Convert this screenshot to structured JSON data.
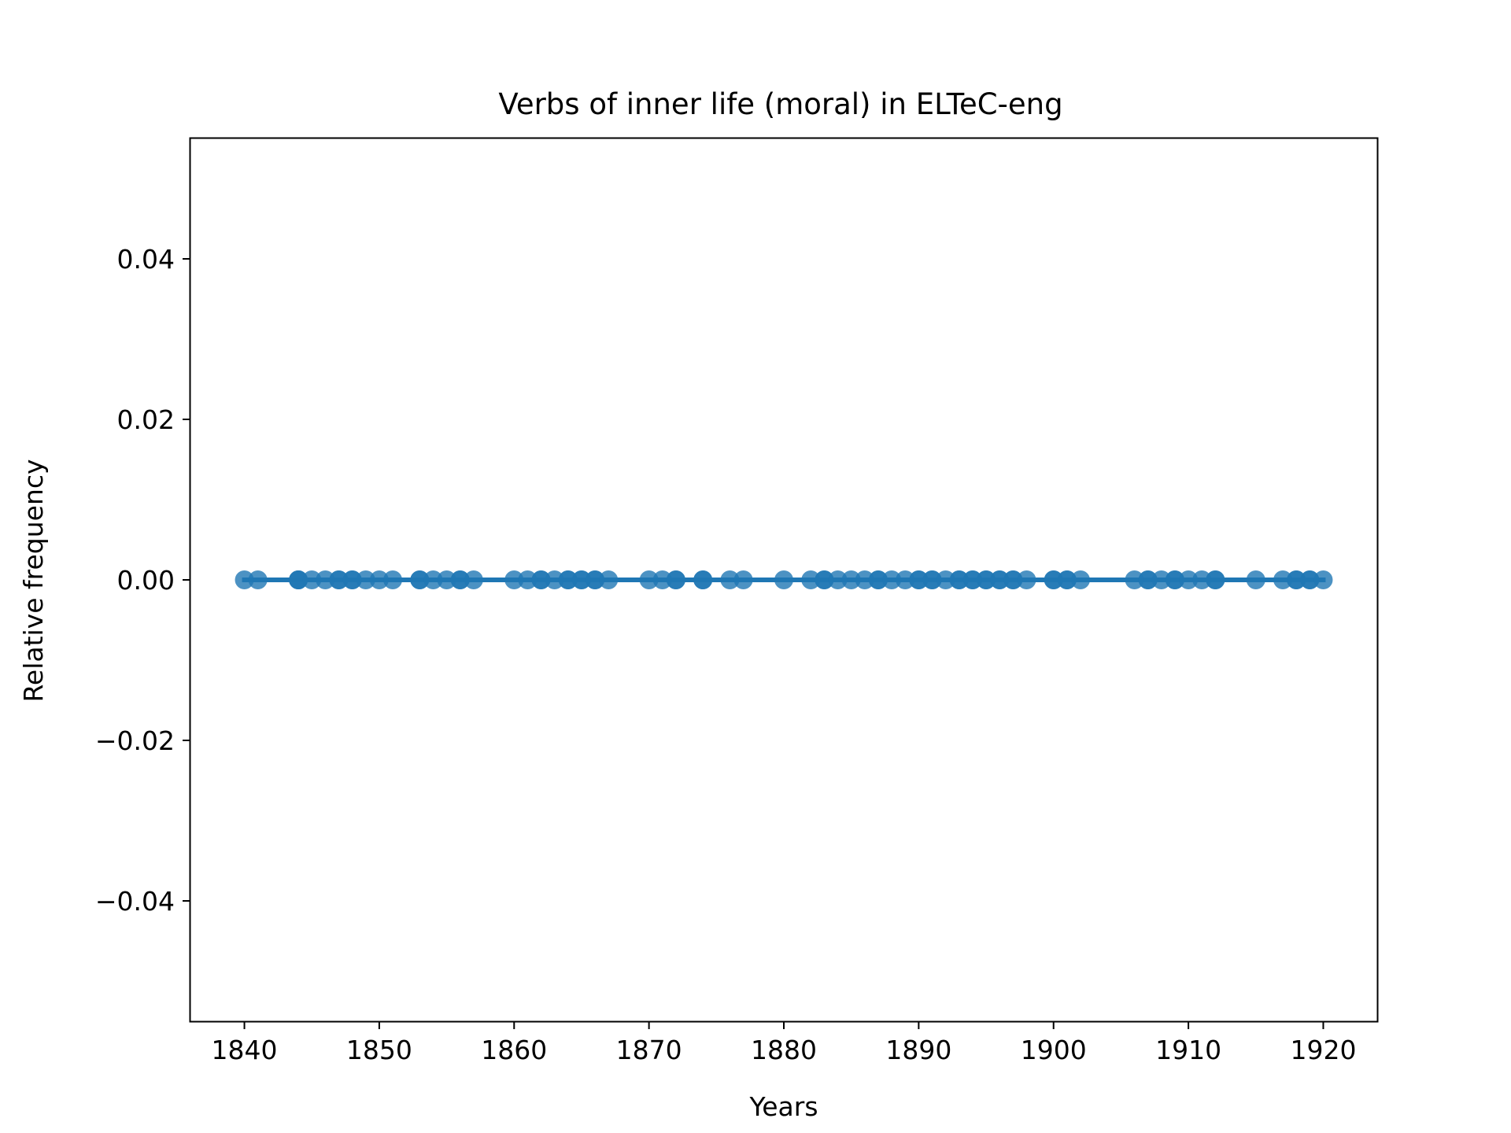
{
  "chart_data": {
    "type": "scatter",
    "title": "Verbs of inner life (moral) in ELTeC-eng",
    "xlabel": "Years",
    "ylabel": "Relative frequency",
    "xlim": [
      1836,
      1924
    ],
    "ylim": [
      -0.055,
      0.055
    ],
    "xticks": [
      1840,
      1850,
      1860,
      1870,
      1880,
      1890,
      1900,
      1910,
      1920
    ],
    "yticks": [
      -0.04,
      -0.02,
      0.0,
      0.02,
      0.04
    ],
    "ytick_labels": [
      "−0.04",
      "−0.02",
      "0.00",
      "0.02",
      "0.04"
    ],
    "grid": false,
    "legend": false,
    "series": [
      {
        "color": "#1f77b4",
        "trend_line": {
          "x": [
            1840,
            1920
          ],
          "y": [
            0,
            0
          ]
        },
        "x": [
          1840,
          1841,
          1844,
          1844,
          1844,
          1845,
          1846,
          1847,
          1847,
          1848,
          1848,
          1849,
          1850,
          1851,
          1853,
          1853,
          1854,
          1855,
          1856,
          1856,
          1857,
          1860,
          1861,
          1862,
          1862,
          1863,
          1864,
          1864,
          1865,
          1865,
          1866,
          1866,
          1867,
          1870,
          1871,
          1872,
          1872,
          1874,
          1874,
          1876,
          1877,
          1880,
          1882,
          1883,
          1883,
          1884,
          1885,
          1886,
          1887,
          1887,
          1888,
          1889,
          1890,
          1890,
          1891,
          1891,
          1892,
          1893,
          1893,
          1894,
          1894,
          1895,
          1895,
          1896,
          1896,
          1897,
          1897,
          1898,
          1900,
          1900,
          1901,
          1901,
          1902,
          1906,
          1907,
          1907,
          1908,
          1909,
          1909,
          1910,
          1911,
          1912,
          1912,
          1915,
          1917,
          1918,
          1918,
          1919,
          1919,
          1920
        ],
        "y": [
          0,
          0,
          0,
          0,
          0,
          0,
          0,
          0,
          0,
          0,
          0,
          0,
          0,
          0,
          0,
          0,
          0,
          0,
          0,
          0,
          0,
          0,
          0,
          0,
          0,
          0,
          0,
          0,
          0,
          0,
          0,
          0,
          0,
          0,
          0,
          0,
          0,
          0,
          0,
          0,
          0,
          0,
          0,
          0,
          0,
          0,
          0,
          0,
          0,
          0,
          0,
          0,
          0,
          0,
          0,
          0,
          0,
          0,
          0,
          0,
          0,
          0,
          0,
          0,
          0,
          0,
          0,
          0,
          0,
          0,
          0,
          0,
          0,
          0,
          0,
          0,
          0,
          0,
          0,
          0,
          0,
          0,
          0,
          0,
          0,
          0,
          0,
          0,
          0,
          0
        ]
      }
    ]
  }
}
